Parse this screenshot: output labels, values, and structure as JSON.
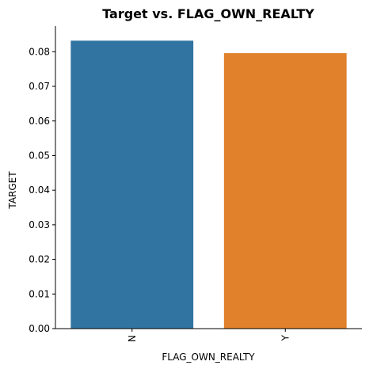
{
  "chart_data": {
    "type": "bar",
    "title": "Target vs. FLAG_OWN_REALTY",
    "xlabel": "FLAG_OWN_REALTY",
    "ylabel": "TARGET",
    "categories": [
      "N",
      "Y"
    ],
    "values": [
      0.0832,
      0.0796
    ],
    "ylim": [
      0,
      0.0874
    ],
    "yticks": [
      "0.00",
      "0.01",
      "0.02",
      "0.03",
      "0.04",
      "0.05",
      "0.06",
      "0.07",
      "0.08"
    ],
    "colors": [
      "#3274a1",
      "#e1812c"
    ],
    "grid": false,
    "legend": "none"
  }
}
